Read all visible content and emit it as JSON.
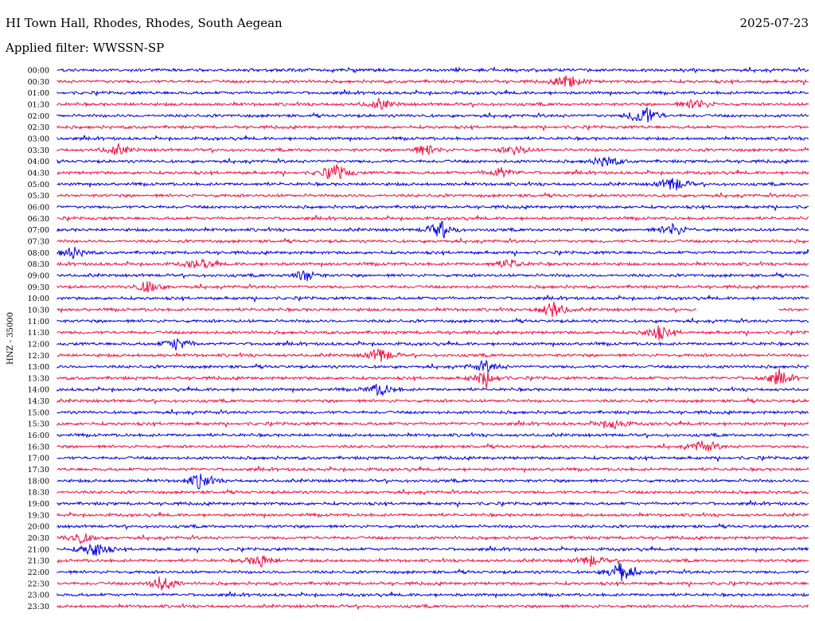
{
  "header": {
    "station": "HI Town Hall, Rhodes, Rhodes, South Aegean",
    "date": "2025-07-23",
    "filter": "Applied filter: WWSSN-SP"
  },
  "chart_data": {
    "type": "line",
    "title": "HI Town Hall, Rhodes, Rhodes, South Aegean",
    "ylabel": "HNZ - 35000",
    "xlabel": "",
    "row_labels": [
      "00:00",
      "00:30",
      "01:00",
      "01:30",
      "02:00",
      "02:30",
      "03:00",
      "03:30",
      "04:00",
      "04:30",
      "05:00",
      "05:30",
      "06:00",
      "06:30",
      "07:00",
      "07:30",
      "08:00",
      "08:30",
      "09:00",
      "09:30",
      "10:00",
      "10:30",
      "11:00",
      "11:30",
      "12:00",
      "12:30",
      "13:00",
      "13:30",
      "14:00",
      "14:30",
      "15:00",
      "15:30",
      "16:00",
      "16:30",
      "17:00",
      "17:30",
      "18:00",
      "18:30",
      "19:00",
      "19:30",
      "20:00",
      "20:30",
      "21:00",
      "21:30",
      "22:00",
      "22:30",
      "23:00",
      "23:30"
    ],
    "colors": [
      "#0000dd",
      "#ee1144"
    ],
    "grid": false,
    "legend": "none",
    "data_gap": {
      "row": "10:30",
      "from_fraction": 0.85,
      "to_fraction": 0.96
    },
    "events": [
      {
        "row": "00:30",
        "at": 0.68,
        "amp": 1.0
      },
      {
        "row": "01:30",
        "at": 0.43,
        "amp": 0.7
      },
      {
        "row": "01:30",
        "at": 0.85,
        "amp": 0.8
      },
      {
        "row": "02:00",
        "at": 0.78,
        "amp": 1.6
      },
      {
        "row": "03:30",
        "at": 0.08,
        "amp": 0.7
      },
      {
        "row": "03:30",
        "at": 0.49,
        "amp": 0.8
      },
      {
        "row": "03:30",
        "at": 0.61,
        "amp": 0.7
      },
      {
        "row": "04:00",
        "at": 0.73,
        "amp": 0.8
      },
      {
        "row": "04:30",
        "at": 0.37,
        "amp": 1.2
      },
      {
        "row": "04:30",
        "at": 0.59,
        "amp": 0.7
      },
      {
        "row": "05:00",
        "at": 0.82,
        "amp": 1.1
      },
      {
        "row": "07:00",
        "at": 0.51,
        "amp": 1.2
      },
      {
        "row": "07:00",
        "at": 0.82,
        "amp": 0.9
      },
      {
        "row": "08:00",
        "at": 0.02,
        "amp": 0.8
      },
      {
        "row": "08:30",
        "at": 0.19,
        "amp": 0.8
      },
      {
        "row": "08:30",
        "at": 0.6,
        "amp": 0.7
      },
      {
        "row": "09:00",
        "at": 0.33,
        "amp": 0.8
      },
      {
        "row": "09:30",
        "at": 0.12,
        "amp": 0.8
      },
      {
        "row": "10:30",
        "at": 0.66,
        "amp": 1.2
      },
      {
        "row": "11:30",
        "at": 0.8,
        "amp": 1.0
      },
      {
        "row": "12:00",
        "at": 0.16,
        "amp": 0.9
      },
      {
        "row": "12:30",
        "at": 0.43,
        "amp": 1.1
      },
      {
        "row": "13:00",
        "at": 0.57,
        "amp": 0.8
      },
      {
        "row": "13:30",
        "at": 0.57,
        "amp": 1.1
      },
      {
        "row": "13:30",
        "at": 0.96,
        "amp": 1.0
      },
      {
        "row": "14:00",
        "at": 0.43,
        "amp": 0.9
      },
      {
        "row": "15:30",
        "at": 0.74,
        "amp": 0.8
      },
      {
        "row": "16:30",
        "at": 0.86,
        "amp": 0.9
      },
      {
        "row": "18:00",
        "at": 0.19,
        "amp": 1.1
      },
      {
        "row": "20:30",
        "at": 0.03,
        "amp": 0.8
      },
      {
        "row": "21:00",
        "at": 0.05,
        "amp": 1.2
      },
      {
        "row": "21:30",
        "at": 0.27,
        "amp": 0.9
      },
      {
        "row": "21:30",
        "at": 0.71,
        "amp": 0.8
      },
      {
        "row": "22:00",
        "at": 0.75,
        "amp": 1.4
      },
      {
        "row": "22:30",
        "at": 0.14,
        "amp": 1.1
      }
    ]
  }
}
